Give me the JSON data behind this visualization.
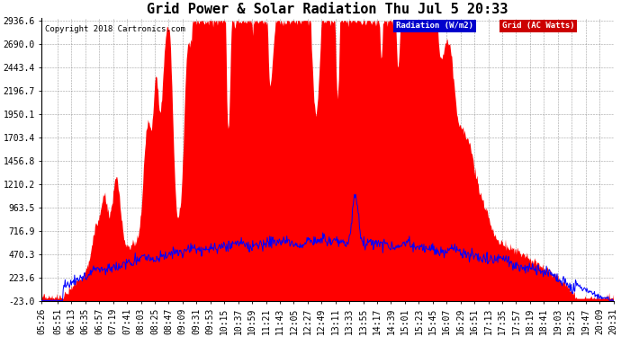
{
  "title": "Grid Power & Solar Radiation Thu Jul 5 20:33",
  "copyright": "Copyright 2018 Cartronics.com",
  "legend_radiation": "Radiation (W/m2)",
  "legend_grid": "Grid (AC Watts)",
  "ylabel_values": [
    "-23.0",
    "223.6",
    "470.3",
    "716.9",
    "963.5",
    "1210.2",
    "1456.8",
    "1703.4",
    "1950.1",
    "2196.7",
    "2443.4",
    "2690.0",
    "2936.6"
  ],
  "ymin": -23.0,
  "ymax": 2936.6,
  "background_color": "#ffffff",
  "plot_bg_color": "#ffffff",
  "grid_color": "#888888",
  "radiation_color": "#ff0000",
  "grid_line_color": "#0000ff",
  "title_fontsize": 11,
  "tick_fontsize": 7,
  "legend_bg_radiation": "#0000cc",
  "legend_bg_grid": "#cc0000",
  "legend_text_color": "#ffffff"
}
